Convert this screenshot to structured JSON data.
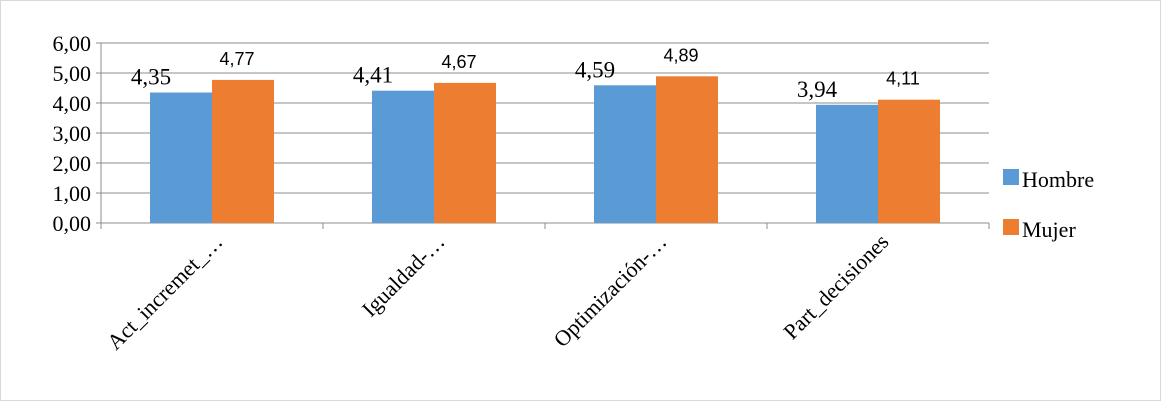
{
  "chart_data": {
    "type": "bar",
    "title": "",
    "xlabel": "",
    "ylabel": "",
    "ylim": [
      0,
      6
    ],
    "ytick_labels": [
      "0,00",
      "1,00",
      "2,00",
      "3,00",
      "4,00",
      "5,00",
      "6,00"
    ],
    "categories": [
      "Act_incremet_…",
      "Igualdad-…",
      "Optimización-…",
      "Part_decisiones"
    ],
    "series": [
      {
        "name": "Hombre",
        "color": "#5b9bd5",
        "values": [
          4.35,
          4.41,
          4.59,
          3.94
        ],
        "labels": [
          "4,35",
          "4,41",
          "4,59",
          "3,94"
        ]
      },
      {
        "name": "Mujer",
        "color": "#ed7d31",
        "values": [
          4.77,
          4.67,
          4.89,
          4.11
        ],
        "labels": [
          "4,77",
          "4,67",
          "4,89",
          "4,11"
        ]
      }
    ],
    "grid": true,
    "legend_position": "right"
  }
}
